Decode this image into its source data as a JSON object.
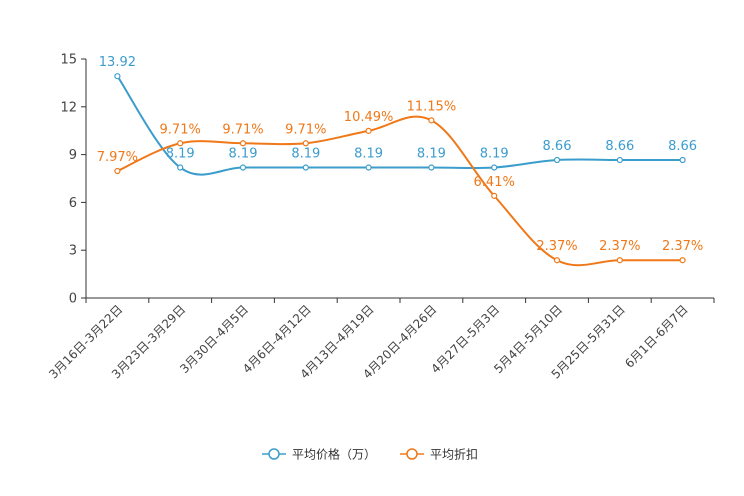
{
  "chart_data": {
    "type": "line",
    "title": "",
    "xlabel": "",
    "ylabel": "",
    "ylim": [
      0,
      15
    ],
    "yticks": [
      "0",
      "3",
      "6",
      "9",
      "12",
      "15"
    ],
    "categories": [
      "3月16日-3月22日",
      "3月23日-3月29日",
      "3月30日-4月5日",
      "4月6日-4月12日",
      "4月13日-4月19日",
      "4月20日-4月26日",
      "4月27日-5月3日",
      "5月4日-5月10日",
      "5月25日-5月31日",
      "6月1日-6月7日"
    ],
    "series": [
      {
        "name": "平均价格（万）",
        "color": "#3b9dcc",
        "values": [
          13.92,
          8.19,
          8.19,
          8.19,
          8.19,
          8.19,
          8.19,
          8.66,
          8.66,
          8.66
        ],
        "labels": [
          "13.92",
          "8.19",
          "8.19",
          "8.19",
          "8.19",
          "8.19",
          "8.19",
          "8.66",
          "8.66",
          "8.66"
        ]
      },
      {
        "name": "平均折扣",
        "color": "#f07818",
        "values": [
          7.97,
          9.71,
          9.71,
          9.71,
          10.49,
          11.15,
          6.41,
          2.37,
          2.37,
          2.37
        ],
        "labels": [
          "7.97%",
          "9.71%",
          "9.71%",
          "9.71%",
          "10.49%",
          "11.15%",
          "6.41%",
          "2.37%",
          "2.37%",
          "2.37%"
        ]
      }
    ],
    "legend_position": "bottom-center"
  }
}
